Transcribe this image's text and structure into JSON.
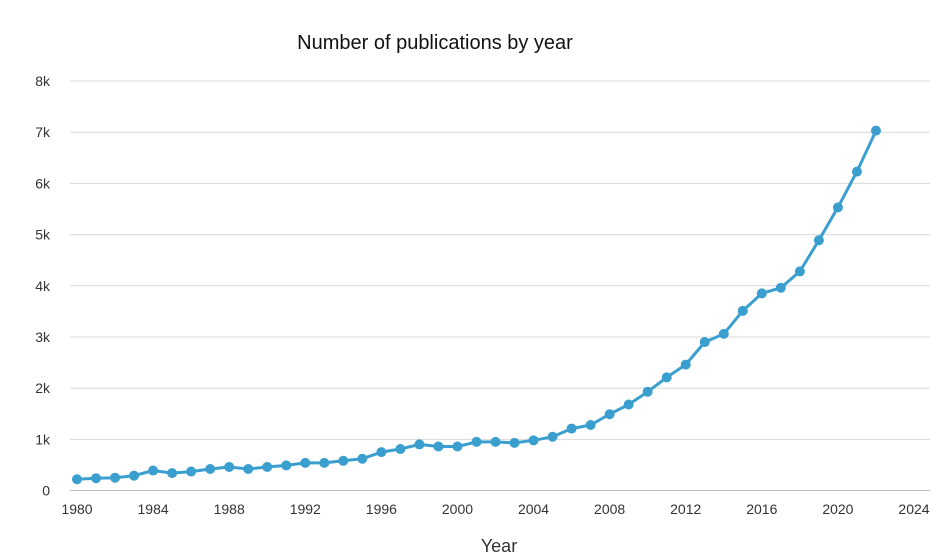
{
  "chart_data": {
    "type": "line",
    "title": "Number of publications by year",
    "xlabel": "Year",
    "ylabel": "",
    "xlim": [
      1980,
      2024
    ],
    "ylim": [
      0,
      8000
    ],
    "grid": true,
    "legend": "none",
    "xticks": [
      1980,
      1984,
      1988,
      1992,
      1996,
      2000,
      2004,
      2008,
      2012,
      2016,
      2020,
      2024
    ],
    "xtick_labels": [
      "1980",
      "1984",
      "1988",
      "1992",
      "1996",
      "2000",
      "2004",
      "2008",
      "2012",
      "2016",
      "2020",
      "2024"
    ],
    "yticks": [
      0,
      1000,
      2000,
      3000,
      4000,
      5000,
      6000,
      7000,
      8000
    ],
    "ytick_labels": [
      "0",
      "1k",
      "2k",
      "3k",
      "4k",
      "5k",
      "6k",
      "7k",
      "8k"
    ],
    "color": "#3a9fcf",
    "series": [
      {
        "name": "Publications",
        "x": [
          1980,
          1981,
          1982,
          1983,
          1984,
          1985,
          1986,
          1987,
          1988,
          1989,
          1990,
          1991,
          1992,
          1993,
          1994,
          1995,
          1996,
          1997,
          1998,
          1999,
          2000,
          2001,
          2002,
          2003,
          2004,
          2005,
          2006,
          2007,
          2008,
          2009,
          2010,
          2011,
          2012,
          2013,
          2014,
          2015,
          2016,
          2017,
          2018,
          2019,
          2020,
          2021,
          2022
        ],
        "y": [
          220,
          240,
          250,
          290,
          390,
          340,
          370,
          420,
          460,
          420,
          460,
          490,
          540,
          540,
          580,
          620,
          750,
          810,
          900,
          860,
          860,
          950,
          950,
          930,
          980,
          1050,
          1210,
          1280,
          1490,
          1680,
          1930,
          2210,
          2460,
          2900,
          3060,
          3510,
          3850,
          3960,
          4280,
          4890,
          5530,
          6230,
          7030
        ]
      }
    ]
  }
}
